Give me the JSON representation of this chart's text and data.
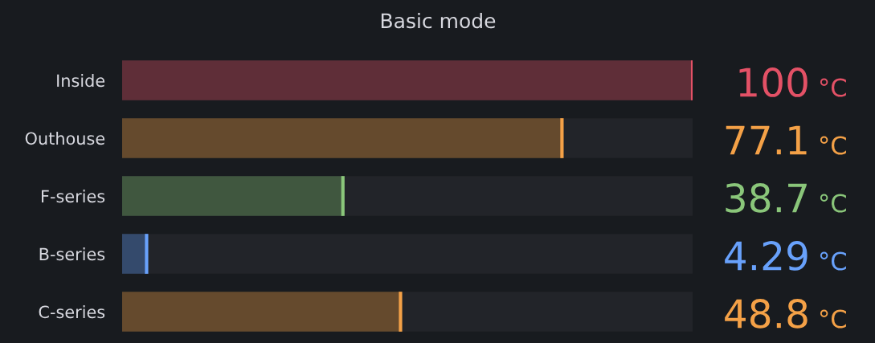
{
  "chart_data": {
    "type": "bar",
    "orientation": "horizontal",
    "title": "Basic mode",
    "categories": [
      "Inside",
      "Outhouse",
      "F-series",
      "B-series",
      "C-series"
    ],
    "values": [
      100,
      77.1,
      38.7,
      4.29,
      48.8
    ],
    "colors": [
      "#5f2e38",
      "#654a2d",
      "#40573f",
      "#344a6c",
      "#654a2d"
    ],
    "value_labels": [
      "100 °C",
      "77.1 °C",
      "38.7 °C",
      "4.29 °C",
      "48.8 °C"
    ],
    "xlim": [
      0,
      100
    ],
    "tick_labels": "y"
  }
}
